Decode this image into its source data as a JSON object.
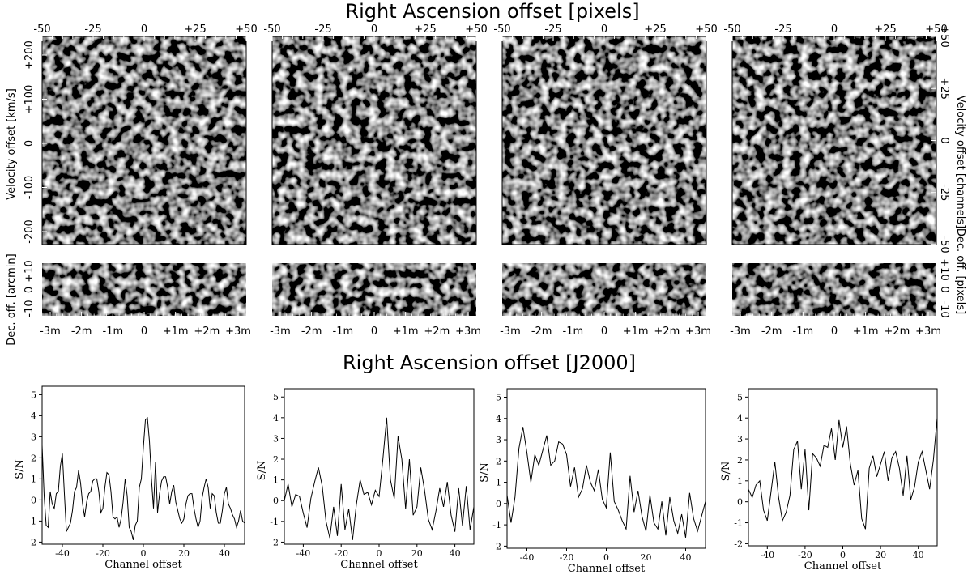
{
  "figure": {
    "top_title": "Right Ascension offset [pixels]",
    "mid_title": "Right Ascension offset [J2000]",
    "left_ylabel_main": "Velocity offset [km/s]",
    "left_ylabel_strip": "Dec. off. [arcmin]",
    "right_ylabel_main": "Velocity offset [channels]",
    "right_ylabel_strip": "Dec. off. [pixels]",
    "top_ticks": [
      "-50",
      "-25",
      "0",
      "+25",
      "+50"
    ],
    "bottom_ticks": [
      "-3m",
      "-2m",
      "-1m",
      "0",
      "+1m",
      "+2m",
      "+3m"
    ],
    "left_main_ticks": [
      "+200",
      "+100",
      "0",
      "-100",
      "-200"
    ],
    "left_strip_ticks": [
      "+10",
      "0",
      "-10"
    ],
    "right_main_ticks": [
      "+50",
      "+25",
      "0",
      "-25",
      "-50"
    ],
    "right_strip_ticks": [
      "+10",
      "0",
      "-10"
    ],
    "colormap": "greyscale",
    "image_type": "noise maps (position-velocity and position-position)"
  },
  "chart_data": [
    {
      "type": "line",
      "xlabel": "Channel offset",
      "ylabel": "S/N",
      "xlim": [
        -50,
        50
      ],
      "ylim": [
        -2.1,
        5.4
      ],
      "xticks": [
        -40,
        -20,
        0,
        20,
        40
      ],
      "yticks": [
        -2,
        -1,
        0,
        1,
        2,
        3,
        4,
        5
      ],
      "x": [
        -50,
        -49,
        -48,
        -47,
        -46,
        -45,
        -44,
        -43,
        -42,
        -41,
        -40,
        -39,
        -38,
        -37,
        -36,
        -35,
        -34,
        -33,
        -32,
        -31,
        -30,
        -29,
        -28,
        -27,
        -26,
        -25,
        -24,
        -23,
        -22,
        -21,
        -20,
        -19,
        -18,
        -17,
        -16,
        -15,
        -14,
        -13,
        -12,
        -11,
        -10,
        -9,
        -8,
        -7,
        -6,
        -5,
        -4,
        -3,
        -2,
        -1,
        0,
        1,
        2,
        3,
        4,
        5,
        6,
        7,
        8,
        9,
        10,
        11,
        12,
        13,
        14,
        15,
        16,
        17,
        18,
        19,
        20,
        21,
        22,
        23,
        24,
        25,
        26,
        27,
        28,
        29,
        30,
        31,
        32,
        33,
        34,
        35,
        36,
        37,
        38,
        39,
        40,
        41,
        42,
        43,
        44,
        45,
        46,
        47,
        48,
        49,
        50
      ],
      "values": [
        2.6,
        0.2,
        -1.2,
        -1.3,
        0.4,
        -0.2,
        -0.4,
        0.3,
        0.4,
        1.6,
        2.2,
        0.3,
        -1.5,
        -1.3,
        -1.1,
        -0.5,
        0.4,
        0.6,
        1.4,
        0.8,
        -0.2,
        -0.8,
        -0.1,
        0.3,
        0.4,
        0.9,
        1.0,
        1.0,
        0.4,
        -0.6,
        -0.4,
        0.6,
        1.3,
        1.2,
        0.4,
        -0.8,
        -0.9,
        -0.8,
        -1.3,
        -0.9,
        -0.1,
        1.0,
        0.2,
        -1.3,
        -1.5,
        -1.9,
        -1.2,
        -1.0,
        0.6,
        1.0,
        2.5,
        3.8,
        3.9,
        2.8,
        1.0,
        -0.4,
        1.8,
        -0.6,
        0.3,
        0.9,
        1.1,
        1.1,
        0.6,
        -0.2,
        0.4,
        0.7,
        -0.1,
        -0.5,
        -0.9,
        -1.1,
        -0.9,
        -0.2,
        0.2,
        0.3,
        0.3,
        -0.4,
        -0.9,
        -1.3,
        -1.0,
        0.1,
        0.6,
        1.0,
        0.6,
        -0.4,
        0.3,
        0.2,
        -0.6,
        -1.1,
        -1.1,
        -0.5,
        0.3,
        0.6,
        -0.2,
        -0.4,
        -0.7,
        -0.9,
        -1.3,
        -1.0,
        -0.5,
        -1.0,
        -1.1
      ]
    },
    {
      "type": "line",
      "xlabel": "Channel offset",
      "ylabel": "S/N",
      "xlim": [
        -50,
        50
      ],
      "ylim": [
        -2.1,
        5.4
      ],
      "xticks": [
        -40,
        -20,
        0,
        20,
        40
      ],
      "yticks": [
        -2,
        -1,
        0,
        1,
        2,
        3,
        4,
        5
      ],
      "x": [
        -50,
        -48,
        -46,
        -44,
        -42,
        -40,
        -38,
        -36,
        -34,
        -32,
        -30,
        -28,
        -26,
        -24,
        -22,
        -20,
        -18,
        -16,
        -14,
        -12,
        -10,
        -8,
        -6,
        -4,
        -2,
        0,
        2,
        4,
        6,
        8,
        10,
        12,
        14,
        16,
        18,
        20,
        22,
        24,
        26,
        28,
        30,
        32,
        34,
        36,
        38,
        40,
        42,
        44,
        46,
        48,
        50
      ],
      "values": [
        0.0,
        0.8,
        -0.3,
        0.3,
        0.2,
        -0.6,
        -1.3,
        0.1,
        0.9,
        1.6,
        0.7,
        -1.0,
        -1.8,
        -0.3,
        -1.7,
        0.8,
        -1.4,
        -0.4,
        -1.9,
        -0.2,
        1.0,
        0.3,
        0.4,
        -0.2,
        0.5,
        0.2,
        2.0,
        4.0,
        1.0,
        0.1,
        3.1,
        2.0,
        -0.4,
        2.0,
        -0.7,
        -0.3,
        1.6,
        0.5,
        -0.9,
        -1.4,
        -0.5,
        0.6,
        -0.3,
        0.9,
        -0.7,
        -1.5,
        0.6,
        -1.2,
        0.7,
        -1.4,
        -0.3
      ]
    },
    {
      "type": "line",
      "xlabel": "Channel offset",
      "ylabel": "S/N",
      "xlim": [
        -50,
        50
      ],
      "ylim": [
        -2.1,
        5.4
      ],
      "xticks": [
        -40,
        -20,
        0,
        20,
        40
      ],
      "yticks": [
        -2,
        -1,
        0,
        1,
        2,
        3,
        4,
        5
      ],
      "x": [
        -50,
        -48,
        -46,
        -44,
        -42,
        -40,
        -38,
        -36,
        -34,
        -32,
        -30,
        -28,
        -26,
        -24,
        -22,
        -20,
        -18,
        -16,
        -14,
        -12,
        -10,
        -8,
        -6,
        -4,
        -2,
        0,
        2,
        4,
        6,
        8,
        10,
        12,
        14,
        16,
        18,
        20,
        22,
        24,
        26,
        28,
        30,
        32,
        34,
        36,
        38,
        40,
        42,
        44,
        46,
        48,
        50
      ],
      "values": [
        0.4,
        -0.9,
        0.3,
        2.6,
        3.6,
        2.4,
        1.0,
        2.3,
        1.8,
        2.5,
        3.2,
        1.8,
        2.0,
        2.9,
        2.8,
        2.3,
        0.8,
        1.7,
        0.3,
        0.7,
        1.8,
        1.0,
        0.6,
        1.6,
        0.2,
        -0.2,
        2.4,
        0.1,
        -0.3,
        -0.8,
        -1.2,
        1.3,
        -0.4,
        0.6,
        -0.6,
        -1.3,
        0.4,
        -0.9,
        -1.2,
        0.1,
        -1.5,
        0.3,
        -0.8,
        -1.4,
        -0.5,
        -1.6,
        0.5,
        -0.7,
        -1.3,
        -0.6,
        0.1
      ]
    },
    {
      "type": "line",
      "xlabel": "Channel offset",
      "ylabel": "S/N",
      "xlim": [
        -50,
        50
      ],
      "ylim": [
        -2.1,
        5.4
      ],
      "xticks": [
        -40,
        -20,
        0,
        20,
        40
      ],
      "yticks": [
        -2,
        -1,
        0,
        1,
        2,
        3,
        4,
        5
      ],
      "x": [
        -50,
        -48,
        -46,
        -44,
        -42,
        -40,
        -38,
        -36,
        -34,
        -32,
        -30,
        -28,
        -26,
        -24,
        -22,
        -20,
        -18,
        -16,
        -14,
        -12,
        -10,
        -8,
        -6,
        -4,
        -2,
        0,
        2,
        4,
        6,
        8,
        10,
        12,
        14,
        16,
        18,
        20,
        22,
        24,
        26,
        28,
        30,
        32,
        34,
        36,
        38,
        40,
        42,
        44,
        46,
        48,
        50
      ],
      "values": [
        0.6,
        0.2,
        0.8,
        1.0,
        -0.4,
        -0.9,
        0.5,
        1.9,
        0.2,
        -0.9,
        -0.5,
        0.3,
        2.5,
        2.9,
        0.6,
        2.5,
        -0.4,
        2.3,
        2.1,
        1.7,
        2.7,
        2.6,
        3.5,
        2.0,
        3.9,
        2.6,
        3.6,
        1.8,
        0.8,
        1.5,
        -0.8,
        -1.3,
        1.6,
        2.2,
        1.2,
        1.8,
        2.4,
        1.0,
        2.1,
        2.4,
        1.6,
        0.3,
        2.2,
        0.1,
        0.7,
        1.9,
        2.4,
        1.5,
        0.6,
        2.0,
        4.0
      ]
    }
  ]
}
